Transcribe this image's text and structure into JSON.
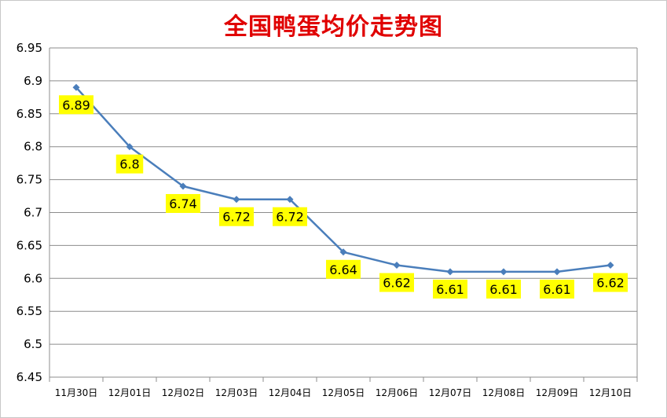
{
  "chart_data": {
    "type": "line",
    "title": "全国鸭蛋均价走势图",
    "categories": [
      "11月30日",
      "12月01日",
      "12月02日",
      "12月03日",
      "12月04日",
      "12月05日",
      "12月06日",
      "12月07日",
      "12月08日",
      "12月09日",
      "12月10日"
    ],
    "values": [
      6.89,
      6.8,
      6.74,
      6.72,
      6.72,
      6.64,
      6.62,
      6.61,
      6.61,
      6.61,
      6.62
    ],
    "data_labels": [
      "6.89",
      "6.8",
      "6.74",
      "6.72",
      "6.72",
      "6.64",
      "6.62",
      "6.61",
      "6.61",
      "6.61",
      "6.62"
    ],
    "ylim": [
      6.45,
      6.95
    ],
    "y_ticks": [
      "6.45",
      "6.5",
      "6.55",
      "6.6",
      "6.65",
      "6.7",
      "6.75",
      "6.8",
      "6.85",
      "6.9",
      "6.95"
    ],
    "grid": true,
    "legend": "none",
    "colors": {
      "line": "#4a7ebb",
      "label_bg": "#ffff00",
      "title": "#e00000",
      "grid": "#8c8c8c"
    }
  }
}
